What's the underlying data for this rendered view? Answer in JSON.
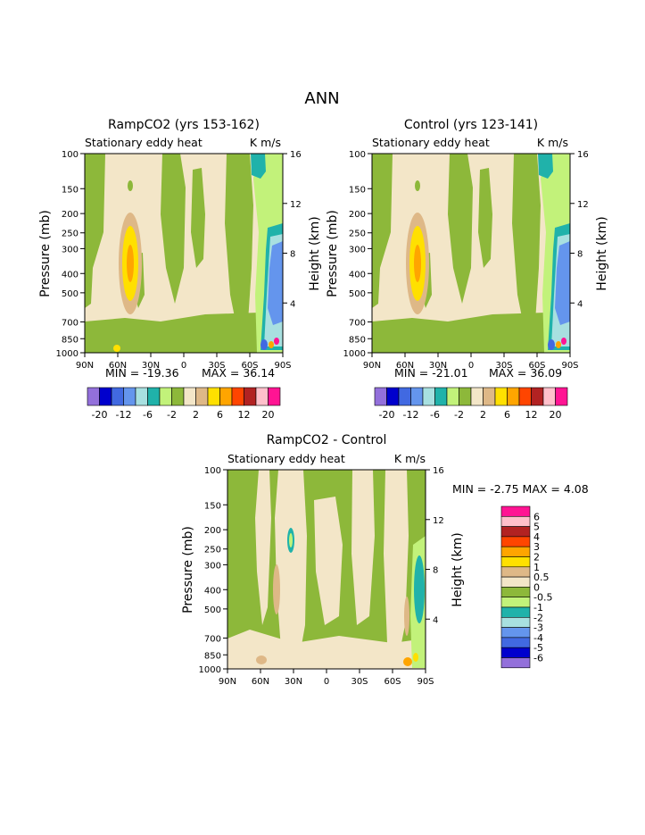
{
  "page_title": "ANN",
  "colors": {
    "green_dark": "#8db83a",
    "green_light": "#c2f27a",
    "cream": "#f3e6c8",
    "tan": "#deb887",
    "yellow": "#ffe000",
    "orange": "#ffa500",
    "teal": "#20b2aa",
    "light_blue": "#6495ed",
    "pale_teal": "#a8e0e0"
  },
  "shared_axes": {
    "pressure_label": "Pressure (mb)",
    "height_label": "Height (km)",
    "pressure_ticks": [
      "100",
      "150",
      "200",
      "250",
      "300",
      "400",
      "500",
      "700",
      "850",
      "1000"
    ],
    "height_ticks": [
      "16",
      "12",
      "8",
      "4"
    ],
    "lat_ticks": [
      "90N",
      "60N",
      "30N",
      "0",
      "30S",
      "60S",
      "90S"
    ],
    "variable": "Stationary eddy heat",
    "units": "K m/s"
  },
  "chart_data": [
    {
      "type": "heatmap",
      "title": "RampCO2 (yrs 153-162)",
      "subtitle_left": "Stationary eddy heat",
      "subtitle_right": "K m/s",
      "xlabel": "",
      "ylabel": "Pressure (mb)",
      "ylabel_right": "Height (km)",
      "min_text": "MIN = -19.36",
      "max_text": "MAX = 36.14",
      "colorbar_levels": [
        "-20",
        "-12",
        "-6",
        "-2",
        "2",
        "6",
        "12",
        "20"
      ],
      "colorbar_colors": [
        "#9370db",
        "#0000cd",
        "#4169e1",
        "#6495ed",
        "#a8e0e0",
        "#20b2aa",
        "#c2f27a",
        "#8db83a",
        "#f3e6c8",
        "#deb887",
        "#ffe000",
        "#ffa500",
        "#ff4500",
        "#b22222",
        "#ffc0cb",
        "#ff1493"
      ]
    },
    {
      "type": "heatmap",
      "title": "Control (yrs 123-141)",
      "subtitle_left": "Stationary eddy heat",
      "subtitle_right": "K m/s",
      "xlabel": "",
      "ylabel": "Pressure (mb)",
      "ylabel_right": "Height (km)",
      "min_text": "MIN = -21.01",
      "max_text": "MAX = 36.09",
      "colorbar_levels": [
        "-20",
        "-12",
        "-6",
        "-2",
        "2",
        "6",
        "12",
        "20"
      ],
      "colorbar_colors": [
        "#9370db",
        "#0000cd",
        "#4169e1",
        "#6495ed",
        "#a8e0e0",
        "#20b2aa",
        "#c2f27a",
        "#8db83a",
        "#f3e6c8",
        "#deb887",
        "#ffe000",
        "#ffa500",
        "#ff4500",
        "#b22222",
        "#ffc0cb",
        "#ff1493"
      ]
    },
    {
      "type": "heatmap",
      "title": "RampCO2 - Control",
      "subtitle_left": "Stationary eddy heat",
      "subtitle_right": "K m/s",
      "xlabel": "",
      "ylabel": "Pressure (mb)",
      "ylabel_right": "Height (km)",
      "minmax_text": "MIN = -2.75 MAX = 4.08",
      "colorbar_levels": [
        "6",
        "5",
        "4",
        "3",
        "2",
        "1",
        "0.5",
        "0",
        "-0.5",
        "-1",
        "-2",
        "-3",
        "-4",
        "-5",
        "-6"
      ],
      "colorbar_colors": [
        "#ff1493",
        "#ffc0cb",
        "#b22222",
        "#ff4500",
        "#ffa500",
        "#ffe000",
        "#deb887",
        "#f3e6c8",
        "#8db83a",
        "#c2f27a",
        "#20b2aa",
        "#a8e0e0",
        "#6495ed",
        "#4169e1",
        "#0000cd",
        "#9370db"
      ]
    }
  ]
}
